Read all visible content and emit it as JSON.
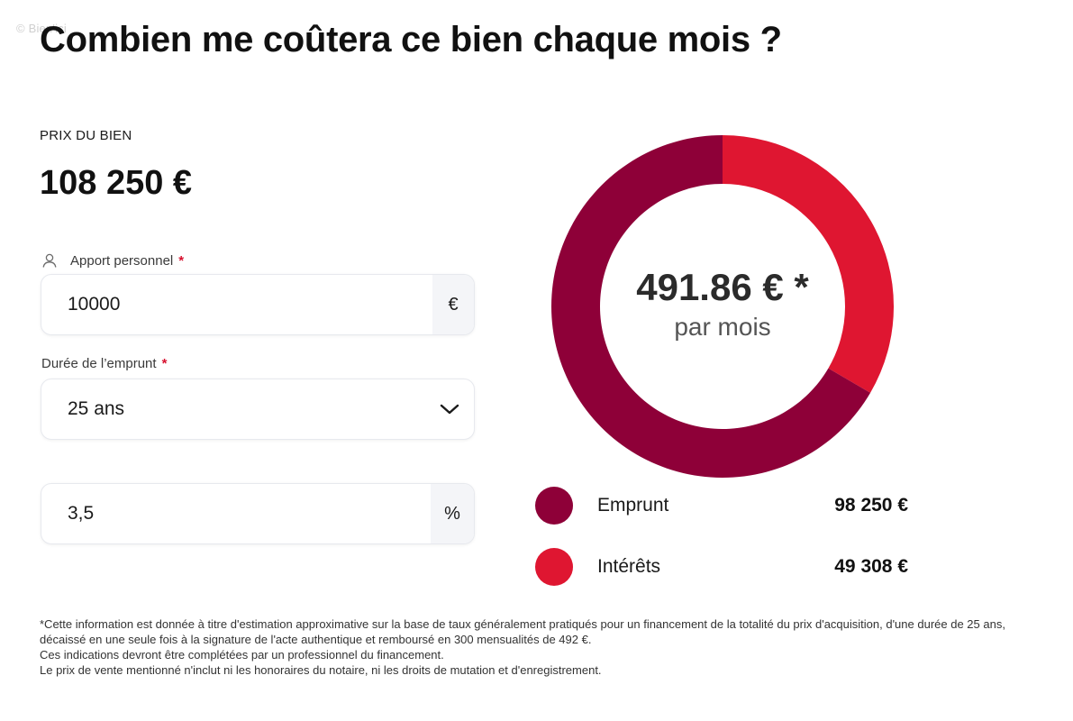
{
  "watermark": "© Bien'ici",
  "title": "Combien me coûtera ce bien chaque mois ?",
  "price": {
    "label": "PRIX DU BIEN",
    "value": "108 250 €"
  },
  "apport": {
    "label": "Apport personnel",
    "required_mark": "*",
    "value": "10000",
    "unit": "€",
    "icon": "user-icon"
  },
  "duree": {
    "label": "Durée de l’emprunt",
    "required_mark": "*",
    "selected": "25 ans",
    "icon": "chevron-down-icon"
  },
  "taux": {
    "value": "3,5",
    "unit": "%"
  },
  "monthly": {
    "amount": "491.86 € *",
    "sub": "par mois"
  },
  "chart_data": {
    "type": "pie",
    "categories": [
      "Emprunt",
      "Intérêts"
    ],
    "values": [
      98250,
      49308
    ],
    "value_labels": [
      "98 250 €",
      "49 308 €"
    ],
    "colors": [
      "#8e0038",
      "#df1631"
    ],
    "title": ""
  },
  "legend": [
    {
      "name": "Emprunt",
      "value": "98 250 €",
      "color": "#8e0038"
    },
    {
      "name": "Intérêts",
      "value": "49 308 €",
      "color": "#df1631"
    }
  ],
  "footnote": {
    "line1": "*Cette information est donnée à titre d'estimation approximative sur la base de taux généralement pratiqués pour un financement de la totalité du prix d'acquisition, d'une durée de 25 ans, décaissé en une seule fois à la signature de l'acte authentique et remboursé en 300 mensualités de 492 €.",
    "line2": "Ces indications devront être complétées par un professionnel du financement.",
    "line3": "Le prix de vente mentionné n'inclut ni les honoraires du notaire, ni les droits de mutation et d'enregistrement."
  }
}
